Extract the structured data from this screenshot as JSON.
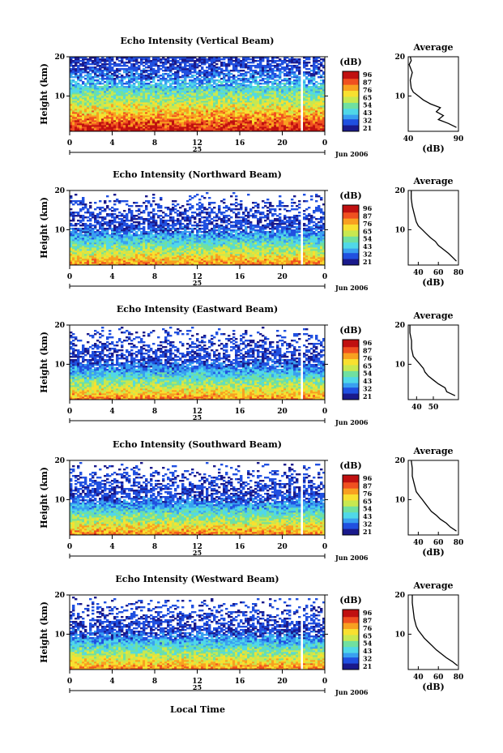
{
  "figure": {
    "xlabel": "Local Time",
    "date_label": "Jun 2006",
    "day_label": "25",
    "colorbar_unit": "(dB)",
    "colorbar_ticks": [
      "96",
      "87",
      "76",
      "65",
      "54",
      "43",
      "32",
      "21"
    ],
    "colormap": [
      "#1a1a8c",
      "#2050e0",
      "#39a0f0",
      "#50d8e8",
      "#70e0a0",
      "#c8e850",
      "#f8e030",
      "#f8a020",
      "#f05020",
      "#c01010"
    ],
    "gap_hour": 21.7
  },
  "chart_data": [
    {
      "type": "heatmap",
      "title": "Echo Intensity (Vertical Beam)",
      "ylabel": "Height (km)",
      "x_ticks": [
        "0",
        "4",
        "8",
        "12",
        "16",
        "20",
        "0"
      ],
      "x_range": [
        0,
        24
      ],
      "y_range": [
        1,
        20
      ],
      "y_ticks": [
        "10",
        "20"
      ],
      "cbar_range": [
        21,
        96
      ],
      "profile": {
        "title": "Average",
        "xlabel": "(dB)",
        "x_ticks": [
          "40",
          "90"
        ],
        "x_range": [
          40,
          90
        ],
        "heights": [
          2,
          3,
          4,
          5,
          6,
          7,
          8,
          9,
          10,
          11,
          12,
          14,
          16,
          18,
          19,
          20
        ],
        "values": [
          88,
          80,
          70,
          75,
          68,
          72,
          62,
          55,
          50,
          45,
          43,
          42,
          44,
          41,
          43,
          42
        ]
      }
    },
    {
      "type": "heatmap",
      "title": "Echo Intensity (Northward Beam)",
      "ylabel": "Height (km)",
      "x_ticks": [
        "0",
        "4",
        "8",
        "12",
        "16",
        "20",
        "0"
      ],
      "x_range": [
        0,
        24
      ],
      "y_range": [
        1,
        20
      ],
      "y_ticks": [
        "10",
        "20"
      ],
      "cbar_range": [
        21,
        96
      ],
      "profile": {
        "title": "Average",
        "xlabel": "(dB)",
        "x_ticks": [
          "40",
          "60",
          "80"
        ],
        "x_range": [
          30,
          80
        ],
        "heights": [
          2,
          3,
          4,
          5,
          6,
          7,
          8,
          9,
          10,
          11,
          12,
          14,
          16,
          18,
          20
        ],
        "values": [
          78,
          74,
          70,
          65,
          60,
          57,
          52,
          48,
          44,
          40,
          38,
          36,
          34,
          33,
          33
        ]
      }
    },
    {
      "type": "heatmap",
      "title": "Echo Intensity (Eastward Beam)",
      "ylabel": "Height (km)",
      "x_ticks": [
        "0",
        "4",
        "8",
        "12",
        "16",
        "20",
        "0"
      ],
      "x_range": [
        0,
        24
      ],
      "y_range": [
        1,
        20
      ],
      "y_ticks": [
        "10",
        "20"
      ],
      "cbar_range": [
        21,
        96
      ],
      "profile": {
        "title": "Average",
        "xlabel": "",
        "x_ticks": [
          "40",
          "50"
        ],
        "x_range": [
          35,
          65
        ],
        "heights": [
          2,
          3,
          4,
          5,
          6,
          7,
          8,
          9,
          10,
          11,
          12,
          14,
          16,
          18,
          20
        ],
        "values": [
          63,
          58,
          57,
          53,
          50,
          47,
          45,
          44,
          42,
          40,
          38,
          37,
          37,
          36,
          36
        ]
      }
    },
    {
      "type": "heatmap",
      "title": "Echo Intensity (Southward Beam)",
      "ylabel": "Height (km)",
      "x_ticks": [
        "0",
        "4",
        "8",
        "12",
        "16",
        "20",
        "0"
      ],
      "x_range": [
        0,
        24
      ],
      "y_range": [
        1,
        20
      ],
      "y_ticks": [
        "10",
        "20"
      ],
      "cbar_range": [
        21,
        96
      ],
      "profile": {
        "title": "Average",
        "xlabel": "(dB)",
        "x_ticks": [
          "40",
          "60",
          "80"
        ],
        "x_range": [
          30,
          80
        ],
        "heights": [
          2,
          3,
          4,
          5,
          6,
          7,
          8,
          9,
          10,
          11,
          12,
          14,
          16,
          18,
          20
        ],
        "values": [
          78,
          72,
          68,
          62,
          58,
          53,
          50,
          47,
          44,
          41,
          38,
          36,
          34,
          34,
          33
        ]
      }
    },
    {
      "type": "heatmap",
      "title": "Echo Intensity (Westward Beam)",
      "ylabel": "Height (km)",
      "x_ticks": [
        "0",
        "4",
        "8",
        "12",
        "16",
        "20",
        "0"
      ],
      "x_range": [
        0,
        24
      ],
      "y_range": [
        1,
        20
      ],
      "y_ticks": [
        "10",
        "20"
      ],
      "cbar_range": [
        21,
        96
      ],
      "profile": {
        "title": "Average",
        "xlabel": "(dB)",
        "x_ticks": [
          "40",
          "60",
          "80"
        ],
        "x_range": [
          30,
          80
        ],
        "heights": [
          2,
          3,
          4,
          5,
          6,
          7,
          8,
          9,
          10,
          11,
          12,
          14,
          16,
          18,
          20
        ],
        "values": [
          79,
          74,
          68,
          63,
          58,
          54,
          50,
          46,
          43,
          40,
          38,
          36,
          35,
          34,
          34
        ]
      }
    }
  ]
}
